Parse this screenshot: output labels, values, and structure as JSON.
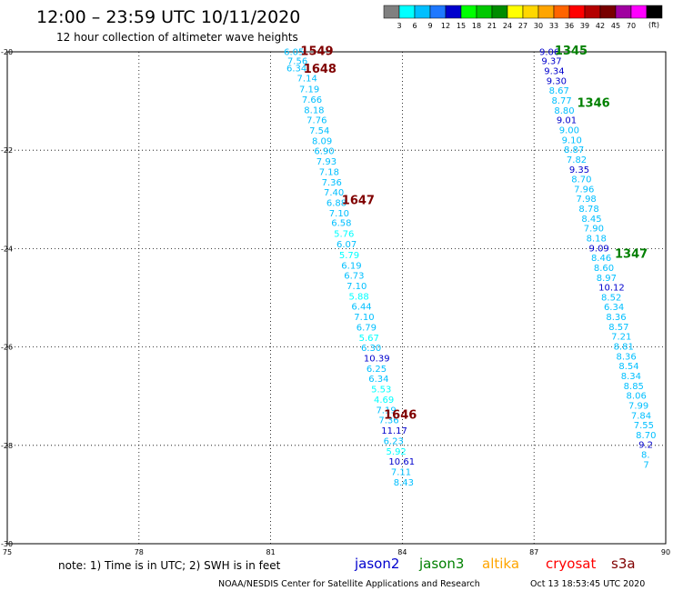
{
  "title": "12:00 – 23:59 UTC 10/11/2020",
  "subtitle": "12 hour collection of altimeter wave heights",
  "scale": {
    "unit": "(ft)",
    "bins": [
      {
        "label": "",
        "color": "#808080"
      },
      {
        "label": "3",
        "color": "#00ffff"
      },
      {
        "label": "6",
        "color": "#00bfff"
      },
      {
        "label": "9",
        "color": "#1e78ff"
      },
      {
        "label": "12",
        "color": "#0000cd"
      },
      {
        "label": "15",
        "color": "#00ff00"
      },
      {
        "label": "18",
        "color": "#00c800"
      },
      {
        "label": "21",
        "color": "#008c00"
      },
      {
        "label": "24",
        "color": "#ffff00"
      },
      {
        "label": "27",
        "color": "#ffd700"
      },
      {
        "label": "30",
        "color": "#ffa500"
      },
      {
        "label": "33",
        "color": "#ff6400"
      },
      {
        "label": "36",
        "color": "#ff0000"
      },
      {
        "label": "39",
        "color": "#b40000"
      },
      {
        "label": "42",
        "color": "#780000"
      },
      {
        "label": "45",
        "color": "#a000a0"
      },
      {
        "label": "70",
        "color": "#ff00ff"
      },
      {
        "label": "",
        "color": "#000000"
      }
    ]
  },
  "axes": {
    "x_ticks": [
      75,
      78,
      81,
      84,
      87,
      90
    ],
    "x_labels": [
      "75",
      "78",
      "81",
      "84",
      "87",
      "90"
    ],
    "y_ticks": [
      -20,
      -22,
      -24,
      -26,
      -28,
      -30
    ],
    "y_labels": [
      "-20",
      "-22",
      "-24",
      "-26",
      "-28",
      "-30"
    ],
    "lon_range": [
      75,
      90
    ],
    "lat_range": [
      -30,
      -20
    ]
  },
  "track_left": {
    "color_light": "#00bfff",
    "color_dark": "#0000cd",
    "obs": [
      {
        "lon": 81.3,
        "lat": -19.99,
        "v": "6.05"
      },
      {
        "lon": 81.38,
        "lat": -20.18,
        "v": "7.56"
      },
      {
        "lon": 81.36,
        "lat": -20.32,
        "v": "6.34"
      },
      {
        "lon": 81.6,
        "lat": -20.53,
        "v": "7.14"
      },
      {
        "lon": 81.65,
        "lat": -20.75,
        "v": "7.19"
      },
      {
        "lon": 81.71,
        "lat": -20.96,
        "v": "7.66"
      },
      {
        "lon": 81.76,
        "lat": -21.17,
        "v": "8.18"
      },
      {
        "lon": 81.82,
        "lat": -21.38,
        "v": "7.76"
      },
      {
        "lon": 81.88,
        "lat": -21.59,
        "v": "7.54"
      },
      {
        "lon": 81.94,
        "lat": -21.8,
        "v": "8.09"
      },
      {
        "lon": 81.99,
        "lat": -22.01,
        "v": "6.90"
      },
      {
        "lon": 82.04,
        "lat": -22.22,
        "v": "7.93"
      },
      {
        "lon": 82.1,
        "lat": -22.43,
        "v": "7.18"
      },
      {
        "lon": 82.16,
        "lat": -22.64,
        "v": "7.36"
      },
      {
        "lon": 82.21,
        "lat": -22.85,
        "v": "7.40"
      },
      {
        "lon": 82.27,
        "lat": -23.06,
        "v": "6.88"
      },
      {
        "lon": 82.33,
        "lat": -23.27,
        "v": "7.10"
      },
      {
        "lon": 82.38,
        "lat": -23.47,
        "v": "6.58"
      },
      {
        "lon": 82.44,
        "lat": -23.69,
        "v": "5.76",
        "c": "#00ffff"
      },
      {
        "lon": 82.5,
        "lat": -23.9,
        "v": "6.07"
      },
      {
        "lon": 82.56,
        "lat": -24.12,
        "v": "5.79",
        "c": "#00ffff"
      },
      {
        "lon": 82.61,
        "lat": -24.33,
        "v": "6.19"
      },
      {
        "lon": 82.67,
        "lat": -24.54,
        "v": "6.73"
      },
      {
        "lon": 82.73,
        "lat": -24.75,
        "v": "7.10"
      },
      {
        "lon": 82.78,
        "lat": -24.96,
        "v": "5.88",
        "c": "#00ffff"
      },
      {
        "lon": 82.84,
        "lat": -25.17,
        "v": "6.44"
      },
      {
        "lon": 82.9,
        "lat": -25.38,
        "v": "7.10"
      },
      {
        "lon": 82.95,
        "lat": -25.59,
        "v": "6.79"
      },
      {
        "lon": 83.01,
        "lat": -25.8,
        "v": "5.67",
        "c": "#00ffff"
      },
      {
        "lon": 83.06,
        "lat": -26.01,
        "v": "6.30"
      },
      {
        "lon": 83.12,
        "lat": -26.22,
        "v": "10.39",
        "c": "#0000cd"
      },
      {
        "lon": 83.18,
        "lat": -26.43,
        "v": "6.25"
      },
      {
        "lon": 83.23,
        "lat": -26.64,
        "v": "6.34"
      },
      {
        "lon": 83.29,
        "lat": -26.85,
        "v": "5.53",
        "c": "#00ffff"
      },
      {
        "lon": 83.35,
        "lat": -27.06,
        "v": "4.69",
        "c": "#00ffff"
      },
      {
        "lon": 83.4,
        "lat": -27.27,
        "v": "7.19"
      },
      {
        "lon": 83.46,
        "lat": -27.48,
        "v": "7.36"
      },
      {
        "lon": 83.52,
        "lat": -27.69,
        "v": "11.17",
        "c": "#0000cd"
      },
      {
        "lon": 83.57,
        "lat": -27.9,
        "v": "6.23"
      },
      {
        "lon": 83.63,
        "lat": -28.11,
        "v": "5.92",
        "c": "#00ffff"
      },
      {
        "lon": 83.69,
        "lat": -28.32,
        "v": "10.61",
        "c": "#0000cd"
      },
      {
        "lon": 83.74,
        "lat": -28.53,
        "v": "7.11"
      },
      {
        "lon": 83.8,
        "lat": -28.74,
        "v": "8.43"
      }
    ]
  },
  "track_right": {
    "obs": [
      {
        "lon": 87.12,
        "lat": -19.99,
        "v": "9.06",
        "c": "#0000cd"
      },
      {
        "lon": 87.17,
        "lat": -20.18,
        "v": "9.37",
        "c": "#0000cd"
      },
      {
        "lon": 87.23,
        "lat": -20.38,
        "v": "9.34",
        "c": "#0000cd"
      },
      {
        "lon": 87.28,
        "lat": -20.58,
        "v": "9.30",
        "c": "#0000cd"
      },
      {
        "lon": 87.34,
        "lat": -20.78,
        "v": "8.67"
      },
      {
        "lon": 87.4,
        "lat": -20.98,
        "v": "8.77"
      },
      {
        "lon": 87.46,
        "lat": -21.18,
        "v": "8.80"
      },
      {
        "lon": 87.51,
        "lat": -21.38,
        "v": "9.01",
        "c": "#0000cd"
      },
      {
        "lon": 87.57,
        "lat": -21.58,
        "v": "9.00"
      },
      {
        "lon": 87.63,
        "lat": -21.78,
        "v": "9.10"
      },
      {
        "lon": 87.68,
        "lat": -21.98,
        "v": "8.87"
      },
      {
        "lon": 87.74,
        "lat": -22.18,
        "v": "7.82"
      },
      {
        "lon": 87.8,
        "lat": -22.38,
        "v": "9.35",
        "c": "#0000cd"
      },
      {
        "lon": 87.85,
        "lat": -22.58,
        "v": "8.70"
      },
      {
        "lon": 87.91,
        "lat": -22.78,
        "v": "7.96"
      },
      {
        "lon": 87.96,
        "lat": -22.98,
        "v": "7.98"
      },
      {
        "lon": 88.02,
        "lat": -23.18,
        "v": "8.78"
      },
      {
        "lon": 88.08,
        "lat": -23.38,
        "v": "8.45"
      },
      {
        "lon": 88.13,
        "lat": -23.58,
        "v": "7.90"
      },
      {
        "lon": 88.19,
        "lat": -23.78,
        "v": "8.18"
      },
      {
        "lon": 88.25,
        "lat": -23.98,
        "v": "9.09",
        "c": "#0000cd"
      },
      {
        "lon": 88.3,
        "lat": -24.18,
        "v": "8.46"
      },
      {
        "lon": 88.36,
        "lat": -24.38,
        "v": "8.60"
      },
      {
        "lon": 88.42,
        "lat": -24.58,
        "v": "8.97"
      },
      {
        "lon": 88.47,
        "lat": -24.78,
        "v": "10.12",
        "c": "#0000cd"
      },
      {
        "lon": 88.53,
        "lat": -24.98,
        "v": "8.52"
      },
      {
        "lon": 88.59,
        "lat": -25.18,
        "v": "6.34"
      },
      {
        "lon": 88.64,
        "lat": -25.38,
        "v": "8.36"
      },
      {
        "lon": 88.7,
        "lat": -25.58,
        "v": "8.57"
      },
      {
        "lon": 88.76,
        "lat": -25.78,
        "v": "7.21"
      },
      {
        "lon": 88.81,
        "lat": -25.98,
        "v": "8.81"
      },
      {
        "lon": 88.87,
        "lat": -26.18,
        "v": "8.36"
      },
      {
        "lon": 88.93,
        "lat": -26.38,
        "v": "8.54"
      },
      {
        "lon": 88.98,
        "lat": -26.58,
        "v": "8.34"
      },
      {
        "lon": 89.04,
        "lat": -26.78,
        "v": "8.85"
      },
      {
        "lon": 89.1,
        "lat": -26.98,
        "v": "8.06"
      },
      {
        "lon": 89.15,
        "lat": -27.18,
        "v": "7.99"
      },
      {
        "lon": 89.21,
        "lat": -27.38,
        "v": "7.84"
      },
      {
        "lon": 89.27,
        "lat": -27.58,
        "v": "7.55"
      },
      {
        "lon": 89.32,
        "lat": -27.78,
        "v": "8.70"
      },
      {
        "lon": 89.38,
        "lat": -27.98,
        "v": "9.2",
        "c": "#0000cd"
      },
      {
        "lon": 89.44,
        "lat": -28.18,
        "v": "8."
      },
      {
        "lon": 89.49,
        "lat": -28.38,
        "v": "7"
      }
    ]
  },
  "pass_labels": [
    {
      "text": "1549",
      "lon": 81.68,
      "lat": -19.97,
      "color": "#800000"
    },
    {
      "text": "1648",
      "lon": 81.75,
      "lat": -20.33,
      "color": "#800000"
    },
    {
      "text": "1647",
      "lon": 82.62,
      "lat": -23.0,
      "color": "#800000"
    },
    {
      "text": "1646",
      "lon": 83.58,
      "lat": -27.37,
      "color": "#800000"
    },
    {
      "text": "1345",
      "lon": 87.47,
      "lat": -19.96,
      "color": "#008000"
    },
    {
      "text": "1346",
      "lon": 87.98,
      "lat": -21.03,
      "color": "#008000"
    },
    {
      "text": "1347",
      "lon": 88.84,
      "lat": -24.09,
      "color": "#008000"
    }
  ],
  "note": "note:  1) Time is in UTC;  2) SWH is in feet",
  "satellites": [
    {
      "name": "jason2",
      "color": "#0000cd"
    },
    {
      "name": "jason3",
      "color": "#008000"
    },
    {
      "name": "altika",
      "color": "#ffa500"
    },
    {
      "name": "cryosat",
      "color": "#ff0000"
    },
    {
      "name": "s3a",
      "color": "#800000"
    }
  ],
  "footer_left": "NOAA/NESDIS Center for Satellite Applications and Research",
  "footer_right": "Oct 13 18:53:45 UTC 2020"
}
